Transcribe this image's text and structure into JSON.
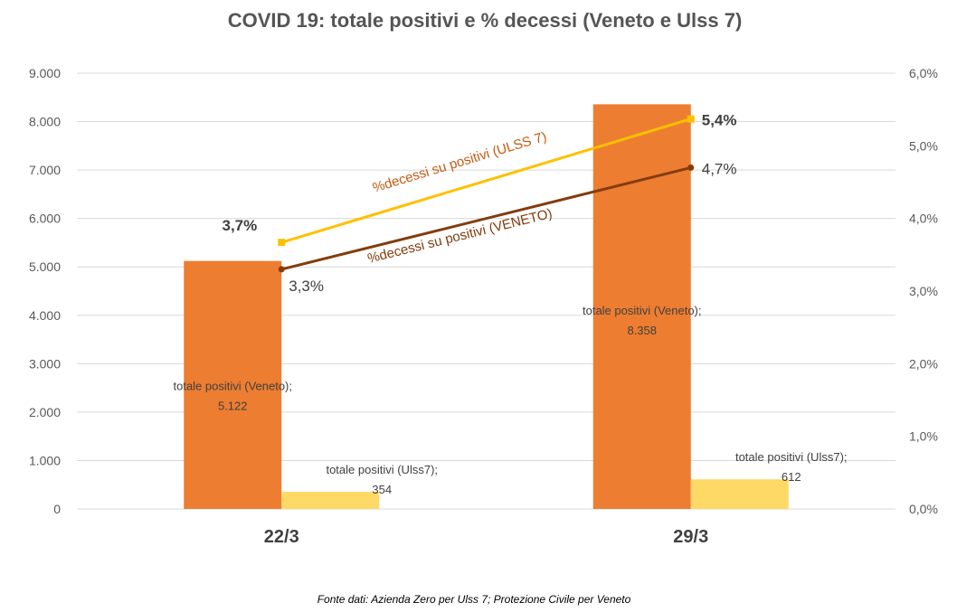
{
  "chart_data": {
    "type": "bar",
    "title": "COVID 19: totale positivi e % decessi (Veneto e Ulss 7)",
    "categories": [
      "22/3",
      "29/3"
    ],
    "y_left": {
      "ylim": [
        0,
        9000
      ],
      "ticks": [
        "0",
        "1.000",
        "2.000",
        "3.000",
        "4.000",
        "5.000",
        "6.000",
        "7.000",
        "8.000",
        "9.000"
      ],
      "tick_values": [
        0,
        1000,
        2000,
        3000,
        4000,
        5000,
        6000,
        7000,
        8000,
        9000
      ]
    },
    "y_right": {
      "ylim": [
        0,
        6
      ],
      "ticks": [
        "0,0%",
        "1,0%",
        "2,0%",
        "3,0%",
        "4,0%",
        "5,0%",
        "6,0%"
      ],
      "tick_values": [
        0,
        1,
        2,
        3,
        4,
        5,
        6
      ]
    },
    "grid": true,
    "bar_series": [
      {
        "key": "veneto",
        "color": "#ED7D31",
        "values": [
          5122,
          8358
        ],
        "labels": [
          [
            "totale positivi (Veneto);",
            "5.122"
          ],
          [
            "totale positivi (Veneto);",
            "8.358"
          ]
        ]
      },
      {
        "key": "ulss7",
        "color": "#FFD966",
        "values": [
          354,
          612
        ],
        "labels": [
          [
            "totale positivi (Ulss7);",
            "354"
          ],
          [
            "totale positivi (Ulss7);",
            "612"
          ]
        ]
      }
    ],
    "line_series": [
      {
        "key": "decessi_ulss7",
        "name": "%decessi su positivi (ULSS 7)",
        "color": "#FFC000",
        "label_color": "#C55A11",
        "marker": "square",
        "axis": "right",
        "values": [
          3.67,
          5.37
        ],
        "labels": [
          "3,7%",
          "5,4%"
        ],
        "bold_labels": true
      },
      {
        "key": "decessi_veneto",
        "name": "%decessi su positivi (VENETO)",
        "color": "#843C0C",
        "label_color": "#843C0C",
        "marker": "circle",
        "axis": "right",
        "values": [
          3.3,
          4.7
        ],
        "labels": [
          "3,3%",
          "4,7%"
        ],
        "bold_labels": false
      }
    ],
    "source": "Fonte dati: Azienda Zero per Ulss 7; Protezione Civile per Veneto"
  }
}
